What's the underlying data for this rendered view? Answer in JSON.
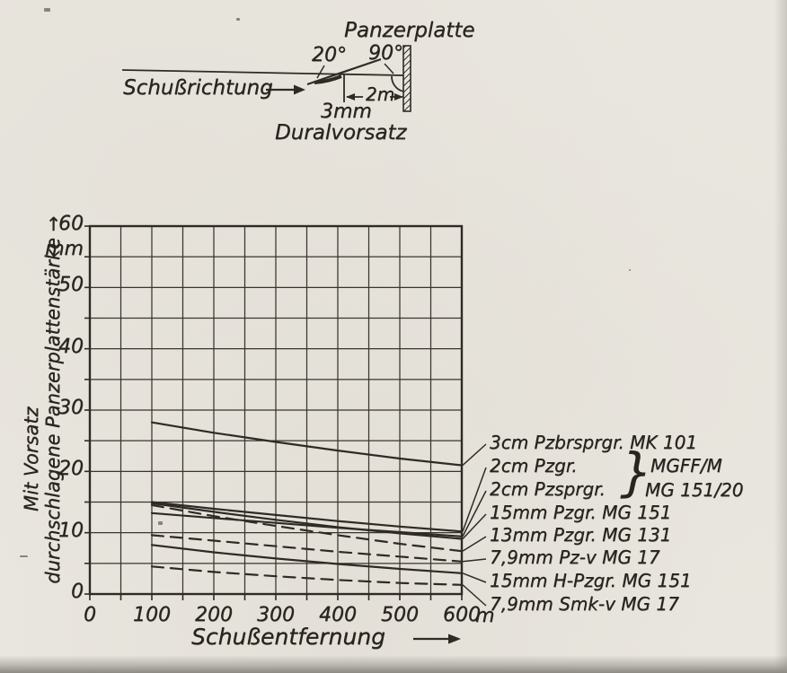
{
  "diagram": {
    "panzerplatte": "Panzerplatte",
    "angle_dural": "20°",
    "angle_plate": "90°",
    "schussrichtung": "Schußrichtung",
    "distance": "2m",
    "thickness": "3mm",
    "vorsatz": "Duralvorsatz"
  },
  "chart_data": {
    "type": "line",
    "xlabel": "Schußentfernung",
    "ylabel_line1": "Mit Vorsatz",
    "ylabel_line2": "durchschlagene Panzerplattenstärke →",
    "x_unit": "m",
    "y_unit": "mm",
    "xlim": [
      0,
      600
    ],
    "ylim": [
      0,
      60
    ],
    "x_ticks": [
      0,
      100,
      200,
      300,
      400,
      500,
      600
    ],
    "y_ticks": [
      0,
      10,
      20,
      30,
      40,
      50,
      60
    ],
    "grid_step_x_m": 50,
    "grid_step_y_mm": 5,
    "grid": "on",
    "legend_position": "right",
    "x": [
      100,
      200,
      300,
      400,
      500,
      600
    ],
    "series": [
      {
        "name": "3cm Pzbrsprgr. MK 101",
        "style": "solid",
        "values": [
          28,
          26.3,
          24.8,
          23.4,
          22.1,
          21
        ]
      },
      {
        "name": "2cm Pzgr.",
        "style": "solid",
        "values": [
          15,
          13.9,
          12.9,
          11.9,
          11,
          10.2
        ]
      },
      {
        "name": "2cm Pzsprgr.",
        "style": "solid",
        "values": [
          13.2,
          12.4,
          11.6,
          10.8,
          10.1,
          9.4
        ]
      },
      {
        "name": "15mm Pzgr. MG 151",
        "style": "solid",
        "values": [
          14.8,
          13.4,
          12.1,
          10.9,
          9.9,
          9
        ]
      },
      {
        "name": "13mm Pzgr. MG 131",
        "style": "dashed",
        "values": [
          14.5,
          12.7,
          11.1,
          9.6,
          8.2,
          7
        ]
      },
      {
        "name": "7,9mm Pz-v MG 17",
        "style": "dashed",
        "values": [
          9.6,
          8.7,
          7.8,
          6.9,
          6.1,
          5.3
        ]
      },
      {
        "name": "15mm H-Pzgr. MG 151",
        "style": "solid",
        "values": [
          8,
          6.8,
          5.8,
          4.9,
          4.1,
          3.4
        ]
      },
      {
        "name": "7,9mm Smk-v MG 17",
        "style": "dashed",
        "values": [
          4.5,
          3.6,
          2.9,
          2.3,
          1.8,
          1.5
        ]
      }
    ],
    "legend_brace": {
      "glyph": "}",
      "guns": [
        "MGFF/M",
        "MG 151/20"
      ]
    }
  }
}
